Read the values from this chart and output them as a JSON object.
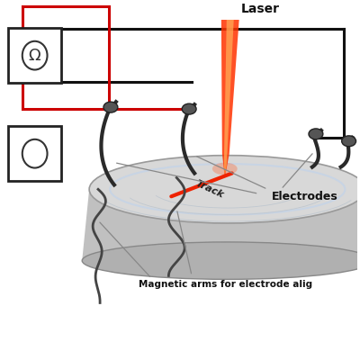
{
  "bg_color": "#ffffff",
  "laser_label": "Laser",
  "track_label": "Track",
  "electrodes_label": "Electrodes",
  "magnetic_label": "Magnetic arms for electrode alig",
  "wire_black": "#111111",
  "wire_red": "#cc0000",
  "track_color": "#ee2200",
  "arm_color": "#2a2a2a",
  "laser_outer": "#ff3300",
  "laser_inner": "#ffaa55",
  "cyl_top": "#d8d8d8",
  "cyl_side": "#c0c0c0",
  "cyl_bot": "#b0b0b0",
  "figsize": [
    4.0,
    4.0
  ],
  "dpi": 100
}
